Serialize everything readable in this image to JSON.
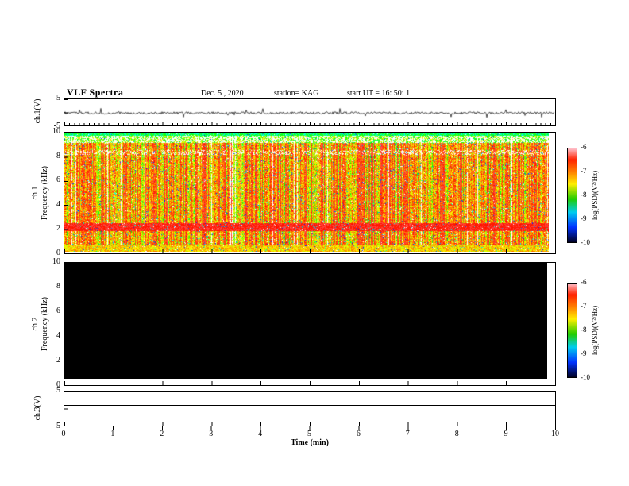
{
  "header": {
    "title": "VLF Spectra",
    "date": "Dec. 5  , 2020",
    "station": "station= KAG",
    "start_ut": "start UT  =   16: 50: 1"
  },
  "panels": {
    "ch1_wave": {
      "label": "ch.1(V)",
      "ytop": "5",
      "ybottom": "-5"
    },
    "ch1_spec": {
      "channel": "ch.1",
      "axis": "Frequency (kHz)",
      "yticks": [
        "10",
        "8",
        "6",
        "4",
        "2",
        "0"
      ]
    },
    "ch2_spec": {
      "channel": "ch.2",
      "axis": "Frequency (kHz)",
      "yticks": [
        "10",
        "8",
        "6",
        "4",
        "2",
        "0"
      ]
    },
    "ch3_wave": {
      "label": "ch.3(V)",
      "ytop": "5",
      "ybottom": "-5"
    }
  },
  "xaxis": {
    "label": "Time (min)",
    "ticks": [
      "0",
      "1",
      "2",
      "3",
      "4",
      "5",
      "6",
      "7",
      "8",
      "9",
      "10"
    ]
  },
  "colorbars": {
    "label": "log(PSD)(V²/Hz)",
    "ticks": [
      "-6",
      "-7",
      "-8",
      "-9",
      "-10"
    ]
  },
  "chart_data": [
    {
      "type": "line",
      "panel": "ch.1 voltage",
      "xlabel": "Time (min)",
      "xlim": [
        0,
        10
      ],
      "ylabel": "ch.1(V)",
      "ylim": [
        -5,
        5
      ],
      "yticks": [
        5,
        -5
      ],
      "series": [
        {
          "name": "ch.1 voltage",
          "description": "continuous low-amplitude noise trace fluctuating around ~0 V with small spikes for the full 0-10 min"
        }
      ]
    },
    {
      "type": "heatmap",
      "panel": "ch.1 spectrogram",
      "xlabel": "Time (min)",
      "xlim": [
        0,
        10
      ],
      "ylabel": "ch.1 Frequency (kHz)",
      "ylim": [
        0,
        10
      ],
      "yticks": [
        0,
        2,
        4,
        6,
        8,
        10
      ],
      "zlabel": "log(PSD)(V²/Hz)",
      "zlim": [
        -10,
        -6
      ],
      "colormap": [
        "#000022",
        "#0033ff",
        "#00ccee",
        "#22cc00",
        "#ffee00",
        "#ff8800",
        "#ff2200",
        "#ffc0cb"
      ],
      "description": "Dense broadband VLF noise over 0-10 kHz: dominated by high power (-7 to -6, red/orange/yellow) with strong vertical striations (sferics), sporadic white dropout columns, a persistent intense red band near 2 kHz, a yellow-green band below ~0.5 kHz, lighter patchy bands near 8.4 and 9.5 kHz, and a thin green/blue edge at 10 kHz"
    },
    {
      "type": "heatmap",
      "panel": "ch.2 spectrogram",
      "xlabel": "Time (min)",
      "xlim": [
        0,
        10
      ],
      "ylabel": "ch.2 Frequency (kHz)",
      "ylim": [
        0,
        10
      ],
      "yticks": [
        0,
        2,
        4,
        6,
        8,
        10
      ],
      "zlabel": "log(PSD)(V²/Hz)",
      "zlim": [
        -10,
        -6
      ],
      "description": "No signal - uniform minimum power across all frequencies and times, rendered solid black"
    },
    {
      "type": "line",
      "panel": "ch.3 voltage",
      "xlabel": "Time (min)",
      "xlim": [
        0,
        10
      ],
      "ylabel": "ch.3(V)",
      "ylim": [
        -5,
        5
      ],
      "yticks": [
        5,
        -5
      ],
      "series": [
        {
          "name": "ch.3 voltage",
          "description": "flat constant trace near +1 V for the full 0-10 min"
        }
      ]
    }
  ]
}
